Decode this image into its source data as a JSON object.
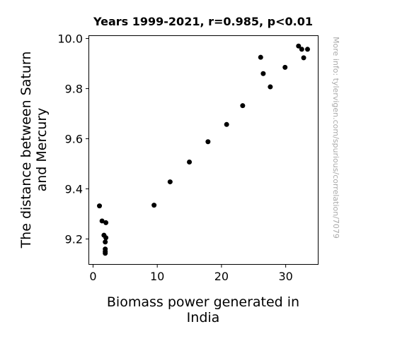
{
  "chart_data": {
    "type": "scatter",
    "title": "Years 1999-2021, r=0.985, p<0.01",
    "xlabel_lines": [
      "Biomass power generated in",
      "India"
    ],
    "ylabel_lines": [
      "The distance between Saturn",
      "and Mercury"
    ],
    "xlim": [
      -0.6,
      35.0
    ],
    "ylim": [
      9.1,
      10.01
    ],
    "xticks": [
      0,
      10,
      20,
      30
    ],
    "xtick_labels": [
      "0",
      "10",
      "20",
      "30"
    ],
    "yticks": [
      9.2,
      9.4,
      9.6,
      9.8,
      10.0
    ],
    "ytick_labels": [
      "9.2",
      "9.4",
      "9.6",
      "9.8",
      "10.0"
    ],
    "grid": false,
    "marker_color": "#000000",
    "points": [
      {
        "x": 1.0,
        "y": 9.332
      },
      {
        "x": 1.4,
        "y": 9.272
      },
      {
        "x": 1.7,
        "y": 9.215
      },
      {
        "x": 2.0,
        "y": 9.265
      },
      {
        "x": 2.0,
        "y": 9.205
      },
      {
        "x": 1.9,
        "y": 9.188
      },
      {
        "x": 1.9,
        "y": 9.16
      },
      {
        "x": 1.9,
        "y": 9.15
      },
      {
        "x": 1.9,
        "y": 9.143
      },
      {
        "x": 9.5,
        "y": 9.335
      },
      {
        "x": 12.0,
        "y": 9.428
      },
      {
        "x": 15.0,
        "y": 9.507
      },
      {
        "x": 17.9,
        "y": 9.588
      },
      {
        "x": 20.8,
        "y": 9.657
      },
      {
        "x": 23.3,
        "y": 9.732
      },
      {
        "x": 26.1,
        "y": 9.925
      },
      {
        "x": 26.5,
        "y": 9.86
      },
      {
        "x": 27.6,
        "y": 9.807
      },
      {
        "x": 29.9,
        "y": 9.885
      },
      {
        "x": 32.0,
        "y": 9.97
      },
      {
        "x": 32.5,
        "y": 9.957
      },
      {
        "x": 32.8,
        "y": 9.923
      },
      {
        "x": 33.4,
        "y": 9.957
      }
    ]
  },
  "watermark": "More info: tylervigen.com/spurious/correlation/7079"
}
